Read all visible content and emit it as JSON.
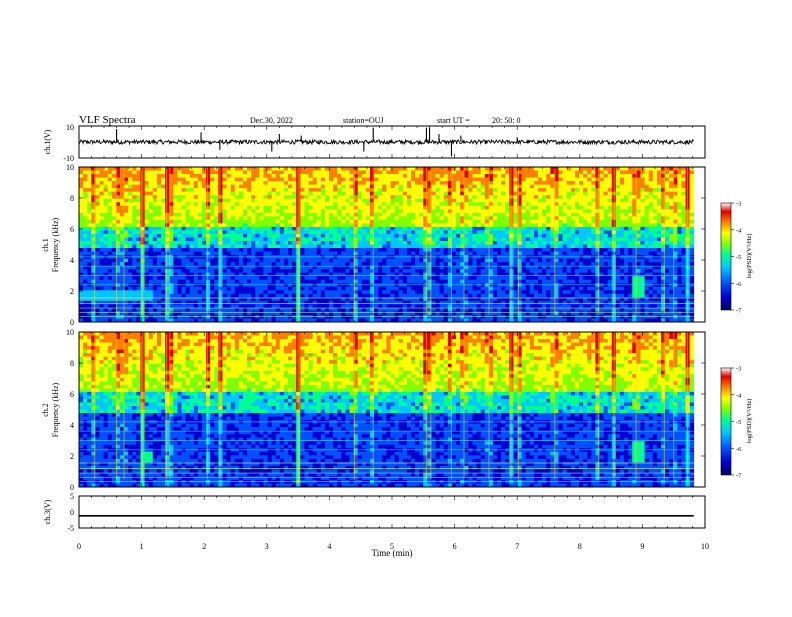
{
  "header": {
    "title": "VLF Spectra",
    "date": "Dec.30, 2022",
    "station": "station=OUJ",
    "start_label": "start  UT =",
    "start_time": "20: 50: 0"
  },
  "chart_data": [
    {
      "type": "line",
      "name": "ch1-waveform",
      "ylabel": "ch.1(V)",
      "ylim": [
        -10,
        10
      ],
      "y_ticks": [
        "10",
        "-10"
      ],
      "xlim": [
        0,
        10
      ],
      "baseline": 0,
      "spikes": [
        {
          "x": 0.6,
          "y": 8
        },
        {
          "x": 1.95,
          "y": 6
        },
        {
          "x": 2.25,
          "y": -5
        },
        {
          "x": 3.08,
          "y": -6
        },
        {
          "x": 3.2,
          "y": 5
        },
        {
          "x": 3.55,
          "y": 4
        },
        {
          "x": 4.55,
          "y": -6
        },
        {
          "x": 4.7,
          "y": 9
        },
        {
          "x": 5.55,
          "y": 9
        },
        {
          "x": 5.6,
          "y": 9
        },
        {
          "x": 5.75,
          "y": 5
        },
        {
          "x": 5.95,
          "y": -9
        },
        {
          "x": 6.1,
          "y": 4
        },
        {
          "x": 7.0,
          "y": 3
        }
      ]
    },
    {
      "type": "heatmap",
      "name": "ch1-spectrogram",
      "ylabel": "ch.1\nFrequency (kHz)",
      "ylabel_lines": [
        "ch.1",
        "Frequency (kHz)"
      ],
      "xlim": [
        0,
        9.82
      ],
      "ylim": [
        0,
        10
      ],
      "y_ticks": [
        "0",
        "2",
        "4",
        "6",
        "8",
        "10"
      ],
      "colorbar": {
        "range": [
          -7,
          -3
        ],
        "ticks": [
          "-3",
          "-4",
          "-5",
          "-6",
          "-7"
        ],
        "label": "log(PSD)(V²/Hz)"
      }
    },
    {
      "type": "heatmap",
      "name": "ch2-spectrogram",
      "ylabel": "ch.2\nFrequency (kHz)",
      "ylabel_lines": [
        "ch.2",
        "Frequency (kHz)"
      ],
      "xlim": [
        0,
        9.82
      ],
      "ylim": [
        0,
        10
      ],
      "y_ticks": [
        "0",
        "2",
        "4",
        "6",
        "8",
        "10"
      ],
      "colorbar": {
        "range": [
          -7,
          -3
        ],
        "ticks": [
          "-3",
          "-4",
          "-5",
          "-6",
          "-7"
        ],
        "label": "log(PSD)(V²/Hz)"
      }
    },
    {
      "type": "line",
      "name": "ch3-voltage",
      "ylabel": "ch.3(V)",
      "ylim": [
        -5,
        5
      ],
      "y_ticks": [
        "5",
        "0",
        "-5"
      ],
      "x": [
        0,
        9.82
      ],
      "values": [
        -1.2,
        -1.2
      ]
    }
  ],
  "xaxis": {
    "label": "Time (min)",
    "range": [
      0,
      10
    ],
    "ticks": [
      "0",
      "1",
      "2",
      "3",
      "4",
      "5",
      "6",
      "7",
      "8",
      "9",
      "10"
    ]
  },
  "colors": {
    "trace": "#000000",
    "frame": "#000000",
    "colormap": [
      "#000066",
      "#0000d0",
      "#0050ff",
      "#00c8ff",
      "#00ff90",
      "#80ff00",
      "#ffff00",
      "#ff8000",
      "#e00000",
      "#ffffff"
    ]
  }
}
